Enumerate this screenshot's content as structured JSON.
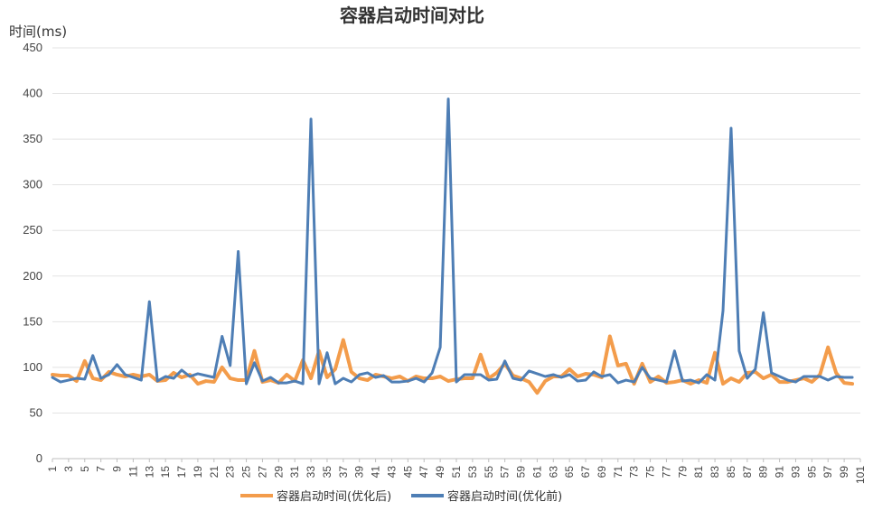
{
  "chart_data": {
    "type": "line",
    "title": "容器启动时间对比",
    "ylabel": "时间(ms)",
    "xlabel": "",
    "ylim": [
      0,
      450
    ],
    "y_ticks": [
      0,
      50,
      100,
      150,
      200,
      250,
      300,
      350,
      400,
      450
    ],
    "x": [
      1,
      2,
      3,
      4,
      5,
      6,
      7,
      8,
      9,
      10,
      11,
      12,
      13,
      14,
      15,
      16,
      17,
      18,
      19,
      20,
      21,
      22,
      23,
      24,
      25,
      26,
      27,
      28,
      29,
      30,
      31,
      32,
      33,
      34,
      35,
      36,
      37,
      38,
      39,
      40,
      41,
      42,
      43,
      44,
      45,
      46,
      47,
      48,
      49,
      50,
      51,
      52,
      53,
      54,
      55,
      56,
      57,
      58,
      59,
      60,
      61,
      62,
      63,
      64,
      65,
      66,
      67,
      68,
      69,
      70,
      71,
      72,
      73,
      74,
      75,
      76,
      77,
      78,
      79,
      80,
      81,
      82,
      83,
      84,
      85,
      86,
      87,
      88,
      89,
      90,
      91,
      92,
      93,
      94,
      95,
      96,
      97,
      98,
      99,
      100
    ],
    "x_tick_labels": [
      "1",
      "3",
      "5",
      "7",
      "9",
      "11",
      "13",
      "15",
      "17",
      "19",
      "21",
      "23",
      "25",
      "27",
      "29",
      "31",
      "33",
      "35",
      "37",
      "39",
      "41",
      "43",
      "45",
      "47",
      "49",
      "51",
      "53",
      "55",
      "57",
      "59",
      "61",
      "63",
      "65",
      "67",
      "69",
      "71",
      "73",
      "75",
      "77",
      "79",
      "81",
      "83",
      "85",
      "87",
      "89",
      "91",
      "93",
      "95",
      "97",
      "99",
      "101"
    ],
    "grid": true,
    "legend_position": "bottom",
    "series": [
      {
        "name": "容器启动时间(优化后)",
        "color": "#F39C4B",
        "values": [
          92,
          91,
          91,
          85,
          107,
          88,
          86,
          95,
          92,
          90,
          92,
          90,
          92,
          85,
          86,
          94,
          89,
          92,
          82,
          85,
          84,
          100,
          88,
          86,
          86,
          118,
          84,
          86,
          83,
          92,
          85,
          108,
          88,
          118,
          89,
          98,
          130,
          95,
          88,
          86,
          92,
          90,
          88,
          90,
          85,
          90,
          88,
          88,
          90,
          85,
          87,
          88,
          88,
          114,
          88,
          94,
          104,
          91,
          88,
          84,
          72,
          85,
          90,
          90,
          98,
          90,
          93,
          92,
          89,
          134,
          102,
          104,
          82,
          104,
          84,
          90,
          83,
          84,
          86,
          82,
          86,
          83,
          116,
          82,
          88,
          84,
          94,
          95,
          88,
          92,
          84,
          84,
          86,
          88,
          84,
          92,
          122,
          94,
          83,
          82
        ]
      },
      {
        "name": "容器启动时间(优化前)",
        "color": "#4E7EB5",
        "values": [
          89,
          84,
          86,
          88,
          87,
          113,
          88,
          92,
          103,
          92,
          89,
          86,
          172,
          85,
          90,
          88,
          97,
          90,
          93,
          91,
          89,
          134,
          102,
          227,
          82,
          105,
          85,
          89,
          83,
          83,
          85,
          82,
          372,
          82,
          116,
          82,
          88,
          84,
          92,
          94,
          89,
          91,
          84,
          84,
          85,
          88,
          84,
          94,
          122,
          394,
          84,
          92,
          92,
          92,
          86,
          87,
          107,
          88,
          86,
          96,
          93,
          90,
          92,
          89,
          92,
          85,
          86,
          95,
          90,
          92,
          83,
          86,
          84,
          100,
          88,
          86,
          84,
          118,
          85,
          86,
          83,
          92,
          86,
          162,
          362,
          118,
          88,
          98,
          160,
          94,
          90,
          86,
          84,
          90,
          90,
          90,
          86,
          90,
          89,
          89
        ]
      }
    ]
  }
}
